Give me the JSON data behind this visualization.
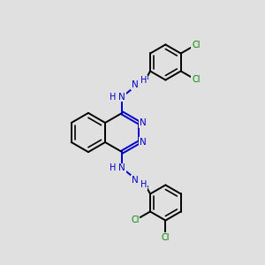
{
  "background_color": "#e0e0e0",
  "bond_color": "#000000",
  "nitrogen_color": "#0000cc",
  "chlorine_color": "#008800",
  "line_width": 1.4,
  "dbo": 0.055,
  "figsize": [
    3.0,
    3.0
  ],
  "dpi": 100,
  "xlim": [
    0,
    10
  ],
  "ylim": [
    0,
    10
  ]
}
